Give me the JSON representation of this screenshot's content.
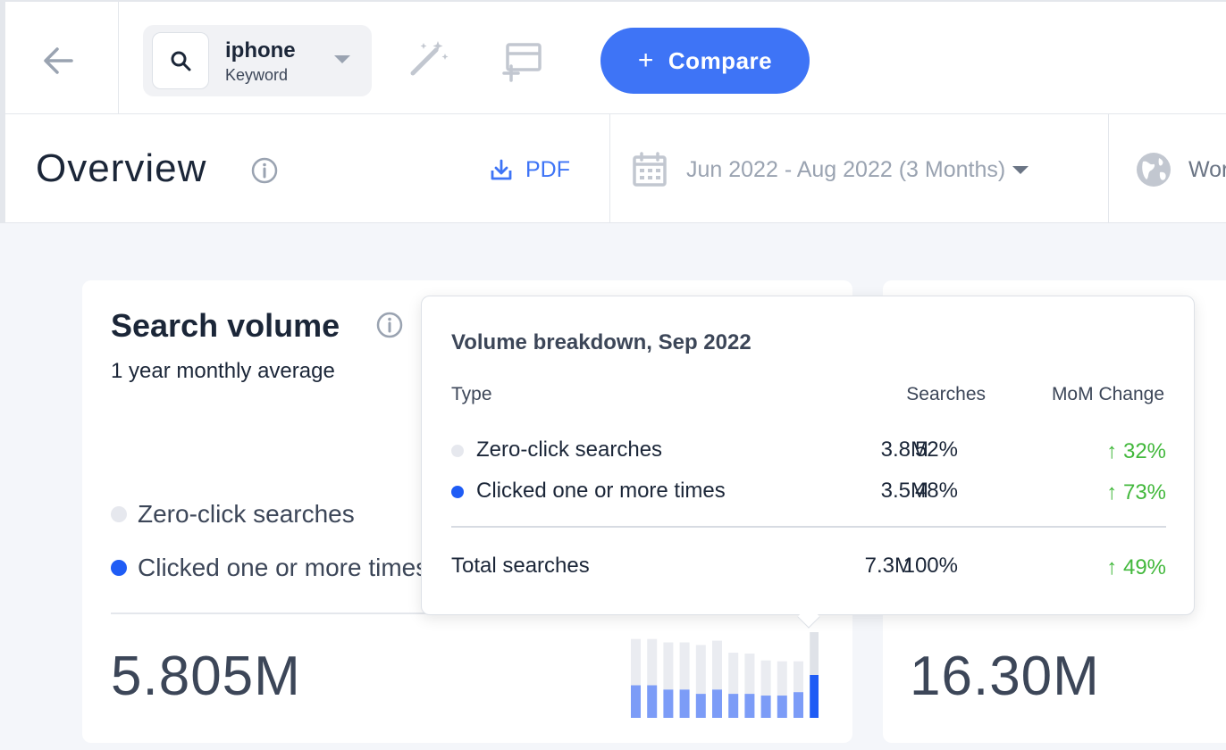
{
  "header": {
    "keyword": {
      "title": "iphone",
      "subtitle": "Keyword"
    },
    "compare_label": "Compare",
    "icons": {
      "back": "arrow-left-icon",
      "search": "search-icon",
      "caret": "caret-down-icon",
      "wand": "magic-wand-icon",
      "layout": "layout-add-icon",
      "plus": "plus-icon"
    }
  },
  "toolbar": {
    "title": "Overview",
    "pdf_label": "PDF",
    "date_range": "Jun 2022 - Aug 2022 (3 Months)",
    "region": "Wor",
    "icons": {
      "info": "info-icon",
      "download": "download-icon",
      "calendar": "calendar-icon",
      "globe": "globe-icon"
    }
  },
  "search_volume_card": {
    "title": "Search volume",
    "subtitle": "1 year monthly average",
    "legend": [
      {
        "label": "Zero-click searches",
        "color": "#e6e8ee"
      },
      {
        "label": "Clicked one or more times",
        "color": "#1f5cf5"
      }
    ],
    "value": "5.805M",
    "mini_chart": {
      "bars": [
        {
          "total": 0.92,
          "clicked": 0.38
        },
        {
          "total": 0.92,
          "clicked": 0.38
        },
        {
          "total": 0.88,
          "clicked": 0.33
        },
        {
          "total": 0.88,
          "clicked": 0.33
        },
        {
          "total": 0.85,
          "clicked": 0.28
        },
        {
          "total": 0.9,
          "clicked": 0.33
        },
        {
          "total": 0.76,
          "clicked": 0.28
        },
        {
          "total": 0.75,
          "clicked": 0.28
        },
        {
          "total": 0.67,
          "clicked": 0.26
        },
        {
          "total": 0.66,
          "clicked": 0.26
        },
        {
          "total": 0.66,
          "clicked": 0.3
        },
        {
          "total": 1.0,
          "clicked": 0.5
        }
      ],
      "zero_color": "#eaecf1",
      "clicked_color": "#7c9cf7",
      "highlight_clicked_color": "#1f5cf5",
      "highlight_zero_color": "#dfe2e8"
    }
  },
  "second_card": {
    "value": "16.30M"
  },
  "tooltip": {
    "title": "Volume breakdown, Sep 2022",
    "headers": {
      "type": "Type",
      "searches": "Searches",
      "mom": "MoM Change"
    },
    "rows": [
      {
        "label": "Zero-click searches",
        "searches": "3.8M",
        "pct": "52%",
        "mom": "↑ 32%",
        "color": "#e6e8ee"
      },
      {
        "label": "Clicked one or more times",
        "searches": "3.5M",
        "pct": "48%",
        "mom": "↑ 73%",
        "color": "#1f5cf5"
      }
    ],
    "total": {
      "label": "Total searches",
      "searches": "7.3M",
      "pct": "100%",
      "mom": "↑ 49%"
    },
    "positive_color": "#42b83c"
  }
}
